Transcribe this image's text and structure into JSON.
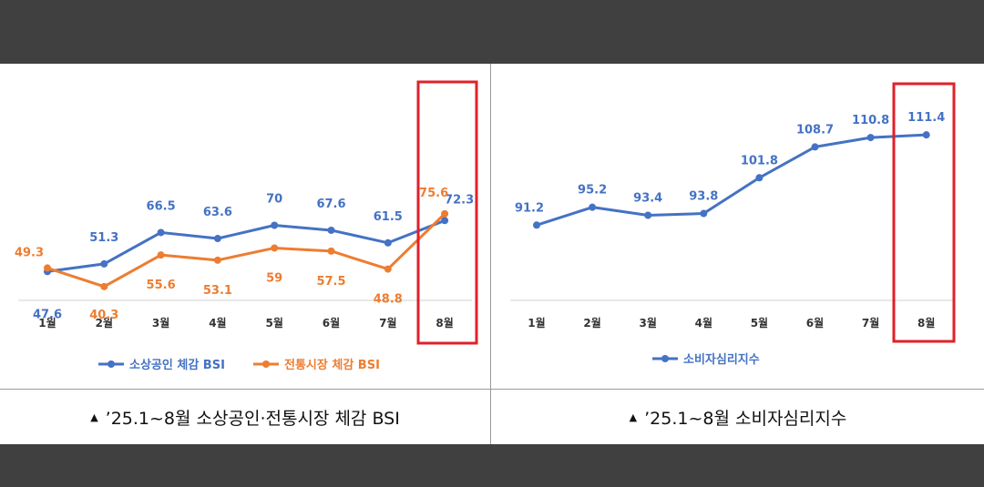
{
  "captions": {
    "left": {
      "marker": "▲",
      "text": "’25.1~8월 소상공인·전통시장 체감 BSI"
    },
    "right": {
      "marker": "▲",
      "text": "’25.1~8월 소비자심리지수"
    }
  },
  "chart_data": [
    {
      "type": "line",
      "categories": [
        "1월",
        "2월",
        "3월",
        "4월",
        "5월",
        "6월",
        "7월",
        "8월"
      ],
      "series": [
        {
          "name": "소상공인 체감 BSI",
          "color": "#4472C4",
          "values": [
            47.6,
            51.3,
            66.5,
            63.6,
            70,
            67.6,
            61.5,
            72.3
          ]
        },
        {
          "name": "전통시장 체감 BSI",
          "color": "#ED7D31",
          "values": [
            49.3,
            40.3,
            55.6,
            53.1,
            59,
            57.5,
            48.8,
            75.6
          ]
        }
      ],
      "highlight": {
        "category": "8월",
        "color": "#E0202A"
      },
      "legend_position": "bottom",
      "grid": false
    },
    {
      "type": "line",
      "categories": [
        "1월",
        "2월",
        "3월",
        "4월",
        "5월",
        "6월",
        "7월",
        "8월"
      ],
      "series": [
        {
          "name": "소비자심리지수",
          "color": "#4472C4",
          "values": [
            91.2,
            95.2,
            93.4,
            93.8,
            101.8,
            108.7,
            110.8,
            111.4
          ]
        }
      ],
      "highlight": {
        "category": "8월",
        "color": "#E0202A"
      },
      "legend_position": "bottom",
      "grid": false
    }
  ]
}
